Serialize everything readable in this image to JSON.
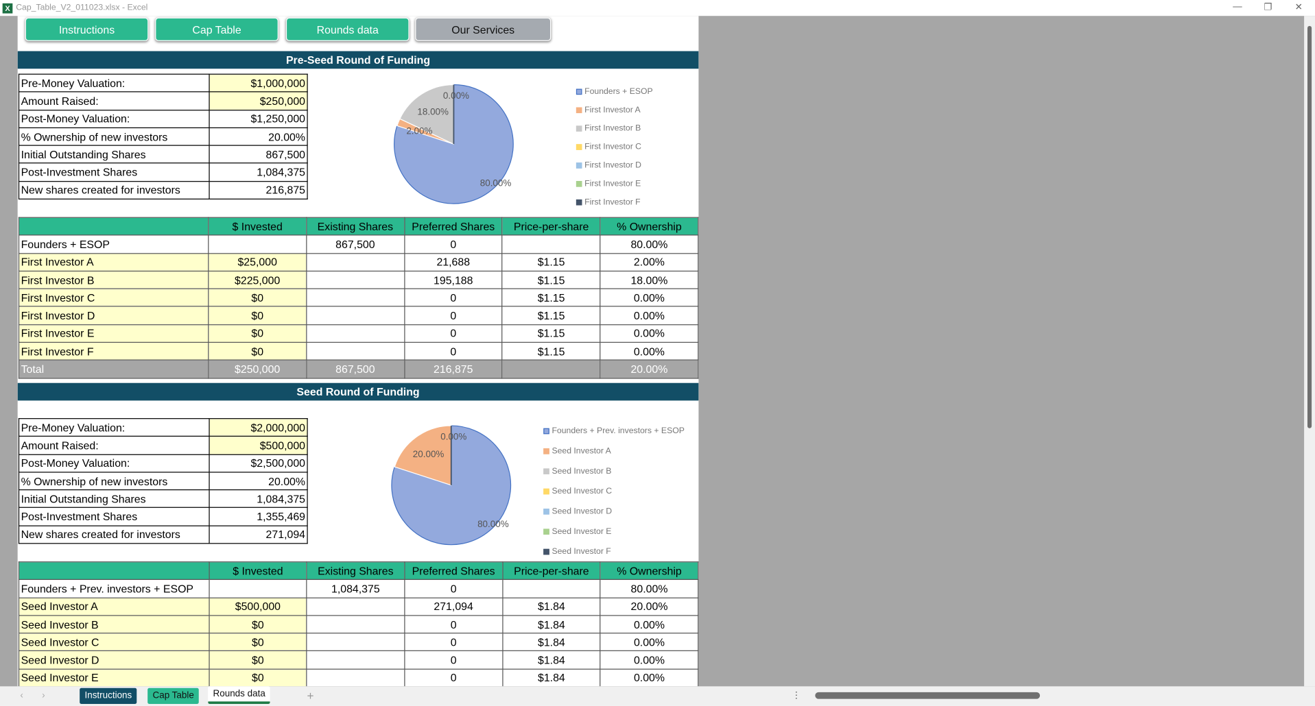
{
  "window": {
    "title": "Cap_Table_V2_011023.xlsx - Excel",
    "app_icon": "X"
  },
  "nav_buttons": [
    {
      "label": "Instructions"
    },
    {
      "label": "Cap Table"
    },
    {
      "label": "Rounds data"
    },
    {
      "label": "Our Services"
    }
  ],
  "colors": {
    "green": "#2bb98f",
    "navy": "#124e66",
    "grey_button": "#a5aab0",
    "yellow": "#ffffcc"
  },
  "preseed": {
    "title": "Pre-Seed Round of Funding",
    "info": [
      [
        "Pre-Money Valuation:",
        "$1,000,000"
      ],
      [
        "Amount Raised:",
        "$250,000"
      ],
      [
        "Post-Money Valuation:",
        "$1,250,000"
      ],
      [
        "% Ownership of new investors",
        "20.00%"
      ],
      [
        "Initial Outstanding Shares",
        "867,500"
      ],
      [
        "Post-Investment Shares",
        "1,084,375"
      ],
      [
        "New shares created for investors",
        "216,875"
      ]
    ],
    "headers": [
      "",
      "$ Invested",
      "Existing Shares",
      "Preferred Shares",
      "Price-per-share",
      "% Ownership"
    ],
    "rows": [
      [
        "Founders + ESOP",
        "",
        "867,500",
        "0",
        "",
        "80.00%"
      ],
      [
        "First Investor A",
        "$25,000",
        "",
        "21,688",
        "$1.15",
        "2.00%"
      ],
      [
        "First Investor B",
        "$225,000",
        "",
        "195,188",
        "$1.15",
        "18.00%"
      ],
      [
        "First Investor C",
        "$0",
        "",
        "0",
        "$1.15",
        "0.00%"
      ],
      [
        "First Investor D",
        "$0",
        "",
        "0",
        "$1.15",
        "0.00%"
      ],
      [
        "First Investor E",
        "$0",
        "",
        "0",
        "$1.15",
        "0.00%"
      ],
      [
        "First Investor F",
        "$0",
        "",
        "0",
        "$1.15",
        "0.00%"
      ]
    ],
    "total": [
      "Total",
      "$250,000",
      "867,500",
      "216,875",
      "",
      "20.00%"
    ]
  },
  "seed": {
    "title": "Seed Round of Funding",
    "info": [
      [
        "Pre-Money Valuation:",
        "$2,000,000"
      ],
      [
        "Amount Raised:",
        "$500,000"
      ],
      [
        "Post-Money Valuation:",
        "$2,500,000"
      ],
      [
        "% Ownership of new investors",
        "20.00%"
      ],
      [
        "Initial Outstanding Shares",
        "1,084,375"
      ],
      [
        "Post-Investment Shares",
        "1,355,469"
      ],
      [
        "New shares created for investors",
        "271,094"
      ]
    ],
    "headers": [
      "",
      "$ Invested",
      "Existing Shares",
      "Preferred Shares",
      "Price-per-share",
      "% Ownership"
    ],
    "rows": [
      [
        "Founders + Prev. investors + ESOP",
        "",
        "1,084,375",
        "0",
        "",
        "80.00%"
      ],
      [
        "Seed Investor A",
        "$500,000",
        "",
        "271,094",
        "$1.84",
        "20.00%"
      ],
      [
        "Seed Investor B",
        "$0",
        "",
        "0",
        "$1.84",
        "0.00%"
      ],
      [
        "Seed Investor C",
        "$0",
        "",
        "0",
        "$1.84",
        "0.00%"
      ],
      [
        "Seed Investor D",
        "$0",
        "",
        "0",
        "$1.84",
        "0.00%"
      ],
      [
        "Seed Investor E",
        "$0",
        "",
        "0",
        "$1.84",
        "0.00%"
      ]
    ]
  },
  "chart_data": [
    {
      "type": "pie",
      "title": "",
      "legend": "right",
      "categories": [
        "Founders + ESOP",
        "First Investor A",
        "First Investor B",
        "First Investor C",
        "First Investor D",
        "First Investor E",
        "First Investor F"
      ],
      "values": [
        80,
        2,
        18,
        0,
        0,
        0,
        0
      ],
      "labels": [
        "80.00%",
        "2.00%",
        "18.00%",
        "0.00%"
      ],
      "colors": [
        "#93a9dd",
        "#f4b183",
        "#c9c9c9",
        "#ffd966",
        "#9dc3e6",
        "#a9d18e",
        "#44546a"
      ]
    },
    {
      "type": "pie",
      "title": "",
      "legend": "right",
      "categories": [
        "Founders + Prev. investors + ESOP",
        "Seed Investor A",
        "Seed Investor B",
        "Seed Investor C",
        "Seed Investor D",
        "Seed Investor E",
        "Seed Investor F"
      ],
      "values": [
        80,
        20,
        0,
        0,
        0,
        0,
        0
      ],
      "labels": [
        "80.00%",
        "20.00%",
        "0.00%"
      ],
      "colors": [
        "#93a9dd",
        "#f4b183",
        "#c9c9c9",
        "#ffd966",
        "#9dc3e6",
        "#a9d18e",
        "#44546a"
      ]
    }
  ],
  "sheet_tabs": [
    {
      "label": "Instructions"
    },
    {
      "label": "Cap Table"
    },
    {
      "label": "Rounds data"
    }
  ],
  "add_sheet": "+"
}
